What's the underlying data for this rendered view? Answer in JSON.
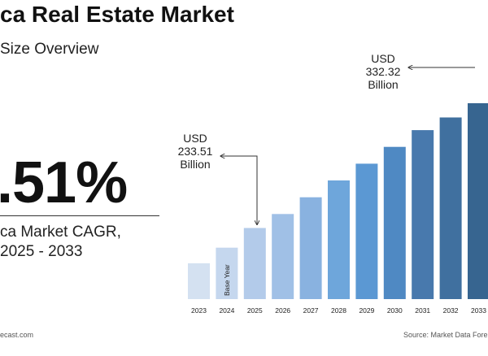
{
  "header": {
    "title": "ca Real Estate Market",
    "subtitle": "Size Overview"
  },
  "cagr": {
    "value": ".51%",
    "label_line1": "ca Market CAGR,",
    "label_line2": "2025 - 2033"
  },
  "footer": {
    "left_source": "ecast.com",
    "right_source": "Source: Market Data Fore"
  },
  "chart_data": {
    "type": "bar",
    "categories": [
      "2023",
      "2024",
      "2025",
      "2026",
      "2027",
      "2028",
      "2029",
      "2030",
      "2031",
      "2032",
      "2033"
    ],
    "values": [
      202,
      216,
      233.51,
      246,
      261,
      276,
      291,
      306,
      321,
      332.32,
      345
    ],
    "bar_colors": [
      "#d4e1f1",
      "#c5d7ee",
      "#b3cbea",
      "#a0c0e6",
      "#89b2e0",
      "#6ea6db",
      "#5b98d3",
      "#4f89c3",
      "#4879ad",
      "#40709f",
      "#376590"
    ],
    "base_year_label": "Base Year",
    "annotations": [
      {
        "category": "2025",
        "line1": "USD",
        "line2": "233.51",
        "line3": "Billion"
      },
      {
        "category": "2032",
        "line1": "USD",
        "line2": "332.32",
        "line3": "Billion"
      }
    ],
    "ylim": [
      170,
      345
    ]
  }
}
